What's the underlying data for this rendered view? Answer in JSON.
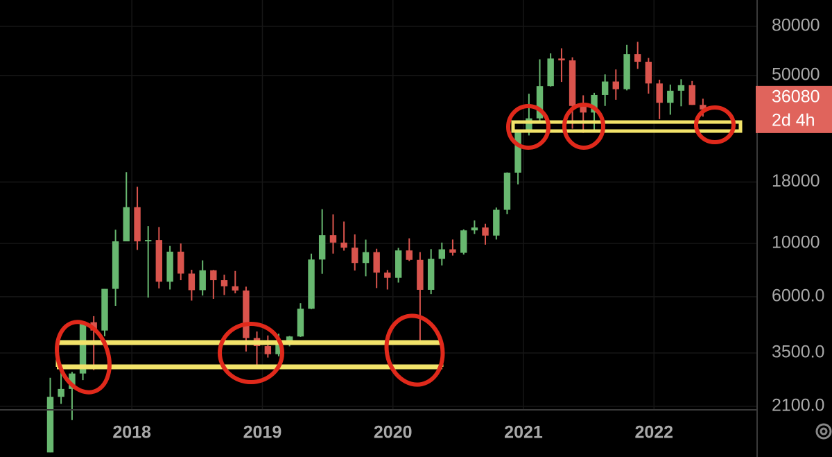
{
  "chart_data": {
    "type": "candlestick",
    "log_scale": true,
    "grid": true,
    "up_color": "#68b870",
    "down_color": "#d9544d",
    "x": [
      2017.375,
      2017.458,
      2017.542,
      2017.625,
      2017.708,
      2017.792,
      2017.875,
      2017.958,
      2018.042,
      2018.125,
      2018.208,
      2018.292,
      2018.375,
      2018.458,
      2018.542,
      2018.625,
      2018.708,
      2018.792,
      2018.875,
      2018.958,
      2019.042,
      2019.125,
      2019.208,
      2019.292,
      2019.375,
      2019.458,
      2019.542,
      2019.625,
      2019.708,
      2019.792,
      2019.875,
      2019.958,
      2020.042,
      2020.125,
      2020.208,
      2020.292,
      2020.375,
      2020.458,
      2020.542,
      2020.625,
      2020.708,
      2020.792,
      2020.875,
      2020.958,
      2021.042,
      2021.125,
      2021.208,
      2021.292,
      2021.375,
      2021.458,
      2021.542,
      2021.625,
      2021.708,
      2021.792,
      2021.875,
      2021.958,
      2022.042,
      2022.125,
      2022.208,
      2022.292,
      2022.375
    ],
    "open": [
      1350,
      2300,
      2480,
      2875,
      4700,
      4340,
      6470,
      10200,
      14150,
      10200,
      10330,
      6930,
      9240,
      7490,
      6390,
      7730,
      7030,
      6630,
      6370,
      4040,
      3740,
      3460,
      3850,
      4100,
      5350,
      8570,
      10820,
      10080,
      9600,
      8290,
      9200,
      7560,
      7190,
      9350,
      8540,
      6410,
      8630,
      9450,
      9140,
      11330,
      11650,
      10780,
      13800,
      19700,
      28990,
      33140,
      45140,
      58800,
      57750,
      37330,
      35040,
      41460,
      47170,
      43830,
      61300,
      57000,
      46300,
      38480,
      43190,
      45540,
      37700
    ],
    "high": [
      2760,
      2980,
      2920,
      4750,
      4980,
      6470,
      11400,
      19800,
      17200,
      11800,
      11700,
      9760,
      9990,
      7770,
      8500,
      7760,
      7410,
      7680,
      6610,
      4300,
      4140,
      4210,
      4120,
      5640,
      9070,
      13880,
      13200,
      12330,
      10900,
      10370,
      9500,
      7750,
      9580,
      10500,
      9200,
      9470,
      10080,
      10380,
      11440,
      12470,
      12070,
      14100,
      19750,
      29300,
      41950,
      58350,
      61780,
      64860,
      59500,
      41330,
      42320,
      50500,
      52950,
      67000,
      69000,
      59100,
      47990,
      45800,
      48190,
      47400,
      40000
    ],
    "low": [
      1350,
      2150,
      1840,
      2700,
      2970,
      4110,
      5500,
      10200,
      9400,
      5950,
      6500,
      6430,
      7030,
      5780,
      6070,
      5880,
      6100,
      6200,
      3550,
      3120,
      3350,
      3390,
      3730,
      4080,
      5330,
      7480,
      9070,
      9330,
      7710,
      7300,
      6520,
      6430,
      6870,
      8450,
      3800,
      6150,
      8100,
      8900,
      8990,
      10950,
      9880,
      10380,
      13230,
      17600,
      28130,
      32300,
      44950,
      47000,
      30000,
      28800,
      29300,
      37330,
      39600,
      43300,
      53250,
      42000,
      32900,
      34320,
      37200,
      37700,
      33700
    ],
    "close": [
      2300,
      2480,
      2875,
      4700,
      4340,
      6470,
      10200,
      14150,
      10200,
      10330,
      6930,
      9240,
      7490,
      6390,
      7730,
      7030,
      6630,
      6370,
      4040,
      3740,
      3460,
      3850,
      4100,
      5350,
      8570,
      10820,
      10080,
      9600,
      8290,
      9200,
      7560,
      7190,
      9350,
      8540,
      6410,
      8630,
      9450,
      9140,
      11330,
      11650,
      10780,
      13800,
      19700,
      28990,
      33140,
      45140,
      58800,
      57750,
      37330,
      35040,
      41460,
      47170,
      43830,
      61300,
      57000,
      46300,
      38480,
      43190,
      45540,
      37700,
      36080
    ],
    "xlim": [
      2016.99,
      2022.79
    ],
    "xticks": [
      2018,
      2019,
      2020,
      2021,
      2022
    ],
    "ylim": [
      2030,
      103000
    ],
    "yticks": [
      {
        "value": 2100,
        "label": "2100.0"
      },
      {
        "value": 3500,
        "label": "3500.0"
      },
      {
        "value": 6000,
        "label": "6000.0"
      },
      10000,
      18000,
      50000,
      80000
    ],
    "current_price": 36080,
    "countdown": "2d 4h",
    "price_label_color": "#e0645c"
  }
}
